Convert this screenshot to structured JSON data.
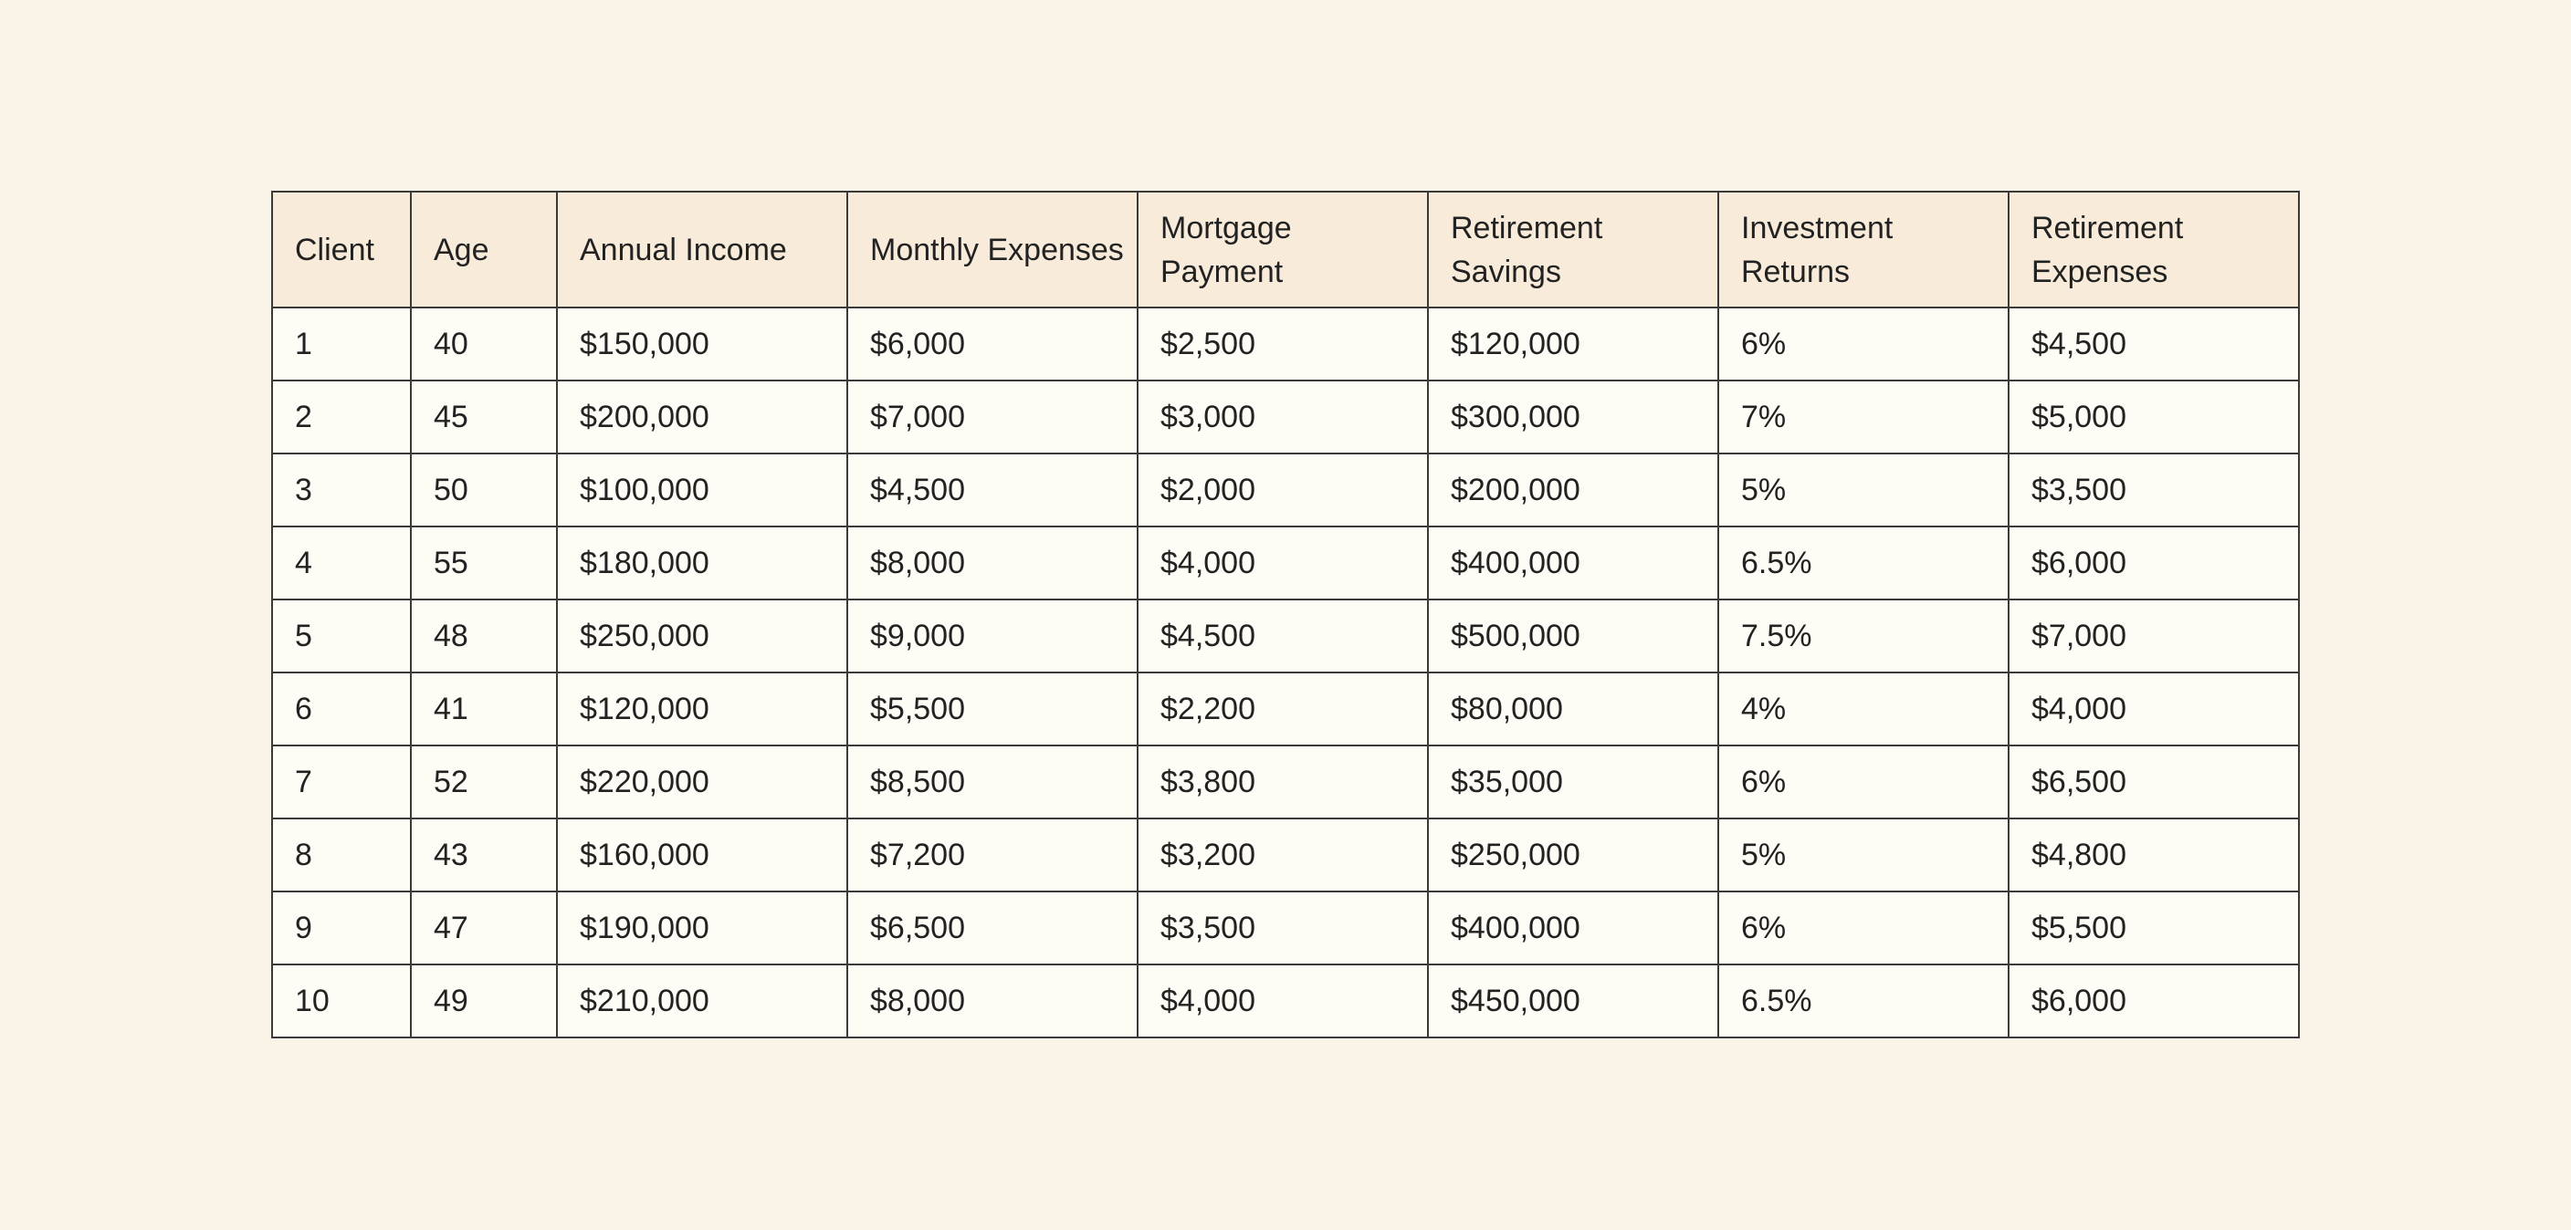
{
  "table": {
    "headers": [
      "Client",
      "Age",
      "Annual Income",
      "Monthly Expenses",
      "Mortgage Payment",
      "Retirement Savings",
      "Investment Returns",
      "Retirement Expenses"
    ],
    "rows": [
      [
        "1",
        "40",
        "$150,000",
        "$6,000",
        "$2,500",
        "$120,000",
        "6%",
        "$4,500"
      ],
      [
        "2",
        "45",
        "$200,000",
        "$7,000",
        "$3,000",
        "$300,000",
        "7%",
        "$5,000"
      ],
      [
        "3",
        "50",
        "$100,000",
        "$4,500",
        "$2,000",
        "$200,000",
        "5%",
        "$3,500"
      ],
      [
        "4",
        "55",
        "$180,000",
        "$8,000",
        "$4,000",
        "$400,000",
        "6.5%",
        "$6,000"
      ],
      [
        "5",
        "48",
        "$250,000",
        "$9,000",
        "$4,500",
        "$500,000",
        "7.5%",
        "$7,000"
      ],
      [
        "6",
        "41",
        "$120,000",
        "$5,500",
        "$2,200",
        "$80,000",
        "4%",
        "$4,000"
      ],
      [
        "7",
        "52",
        "$220,000",
        "$8,500",
        "$3,800",
        "$35,000",
        "6%",
        "$6,500"
      ],
      [
        "8",
        "43",
        "$160,000",
        "$7,200",
        "$3,200",
        "$250,000",
        "5%",
        "$4,800"
      ],
      [
        "9",
        "47",
        "$190,000",
        "$6,500",
        "$3,500",
        "$400,000",
        "6%",
        "$5,500"
      ],
      [
        "10",
        "49",
        "$210,000",
        "$8,000",
        "$4,000",
        "$450,000",
        "6.5%",
        "$6,000"
      ]
    ]
  },
  "colors": {
    "page_background": "#faf3e8",
    "header_background": "#f8ebda",
    "cell_background": "#fffcf5",
    "border": "#3a3a3a",
    "text": "#222222"
  }
}
